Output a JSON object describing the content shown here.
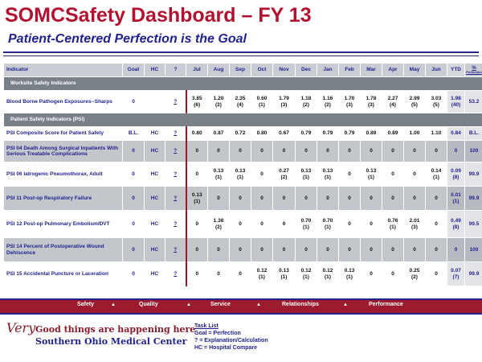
{
  "header": {
    "title": "SOMCSafety Dashboard – FY 13",
    "subtitle": "Patient-Centered Perfection is the Goal"
  },
  "table": {
    "columns": {
      "indicator": "Indicator",
      "goal": "Goal",
      "hc": "HC",
      "q": "?",
      "months": [
        "Jul",
        "Aug",
        "Sep",
        "Oct",
        "Nov",
        "Dec",
        "Jan",
        "Feb",
        "Mar",
        "Apr",
        "May",
        "Jun"
      ],
      "ytd": "YTD",
      "pct": "%",
      "pct_sub": "Perfection"
    },
    "sections": [
      {
        "label": "Worksite Safety Indicators",
        "rows": [
          {
            "indicator": "Blood Borne Pathogen Exposures--Sharps",
            "goal": "0",
            "hc": "",
            "q": "?",
            "m": [
              "3.85\n(6)",
              "1.20\n(2)",
              "2.35\n(4)",
              "0.60\n(1)",
              "1.79\n(3)",
              "1.18\n(2)",
              "1.16\n(2)",
              "1.70\n(3)",
              "1.78\n(3)",
              "2.27\n(4)",
              "2.99\n(5)",
              "3.03\n(5)"
            ],
            "ytd": "1.98\n(40)",
            "pct": "53.2"
          }
        ]
      },
      {
        "label": "Patient Safety Indicators (PSI)",
        "rows": [
          {
            "indicator": "PSI Composite Score for Patient Safety",
            "goal": "B.L.",
            "hc": "HC",
            "q": "?",
            "m": [
              "0.80",
              "0.87",
              "0.72",
              "0.80",
              "0.67",
              "0.79",
              "0.79",
              "0.79",
              "0.89",
              "0.89",
              "1.00",
              "1.10"
            ],
            "ytd": "0.84",
            "pct": "B.L."
          },
          {
            "indicator": "PSI 04 Death Among Surgical Inpatients With Serious Treatable Complications",
            "goal": "0",
            "hc": "HC",
            "q": "?",
            "m": [
              "0",
              "0",
              "0",
              "0",
              "0",
              "0",
              "0",
              "0",
              "0",
              "0",
              "0",
              "0"
            ],
            "ytd": "0",
            "pct": "100"
          },
          {
            "indicator": "PSI 06 Iatrogenic Pneumothorax, Adult",
            "goal": "0",
            "hc": "HC",
            "q": "?",
            "m": [
              "0",
              "0.13\n(1)",
              "0.13\n(1)",
              "0",
              "0.27\n(2)",
              "0.13\n(1)",
              "0.13\n(1)",
              "0",
              "0.13\n(1)",
              "0",
              "0",
              "0.14\n(1)"
            ],
            "ytd": "0.09\n(8)",
            "pct": "99.9"
          },
          {
            "indicator": "PSI 11 Post-op Respiratory Failure",
            "goal": "0",
            "hc": "HC",
            "q": "?",
            "m": [
              "0.13\n(1)",
              "0",
              "0",
              "0",
              "0",
              "0",
              "0",
              "0",
              "0",
              "0",
              "0",
              "0"
            ],
            "ytd": "0.01\n(1)",
            "pct": "99.9"
          },
          {
            "indicator": "PSI 12 Post-op Pulmonary Embolism/DVT",
            "goal": "0",
            "hc": "HC",
            "q": "?",
            "m": [
              "0",
              "1.38\n(2)",
              "0",
              "0",
              "0",
              "0.70\n(1)",
              "0.70\n(1)",
              "0",
              "0",
              "0.76\n(1)",
              "2.01\n(3)",
              "0"
            ],
            "ytd": "0.49\n(8)",
            "pct": "99.5"
          },
          {
            "indicator": "PSI 14 Percent of Postoperative Wound Dehiscence",
            "goal": "0",
            "hc": "HC",
            "q": "?",
            "m": [
              "0",
              "0",
              "0",
              "0",
              "0",
              "0",
              "0",
              "0",
              "0",
              "0",
              "0",
              "0"
            ],
            "ytd": "0",
            "pct": "100"
          },
          {
            "indicator": "PSI 15 Accidental Puncture or Laceration",
            "goal": "0",
            "hc": "HC",
            "q": "?",
            "m": [
              "0",
              "0",
              "0",
              "0.12\n(1)",
              "0.13\n(1)",
              "0.12\n(1)",
              "0.12\n(1)",
              "0.13\n(1)",
              "0",
              "0",
              "0.25\n(2)",
              "0"
            ],
            "ytd": "0.07\n(7)",
            "pct": "99.9"
          }
        ]
      }
    ]
  },
  "nav": {
    "items": [
      "Safety",
      "Quality",
      "Service",
      "Relationships",
      "Performance"
    ],
    "arrow": "▲"
  },
  "logo": {
    "very": "Very",
    "line1": "Good things are happening here",
    "line2": "Southern Ohio Medical Center"
  },
  "legend": {
    "title": "Task List",
    "items": [
      "Goal = Perfection",
      "? = Explanation/Calculation",
      "HC = Hospital Compare"
    ]
  },
  "colors": {
    "title_red": "#b3112f",
    "navy": "#1f1f8f",
    "nav_red": "#9c1b2c",
    "row_gray": "#c3c7cc",
    "section_gray": "#7a8088"
  }
}
